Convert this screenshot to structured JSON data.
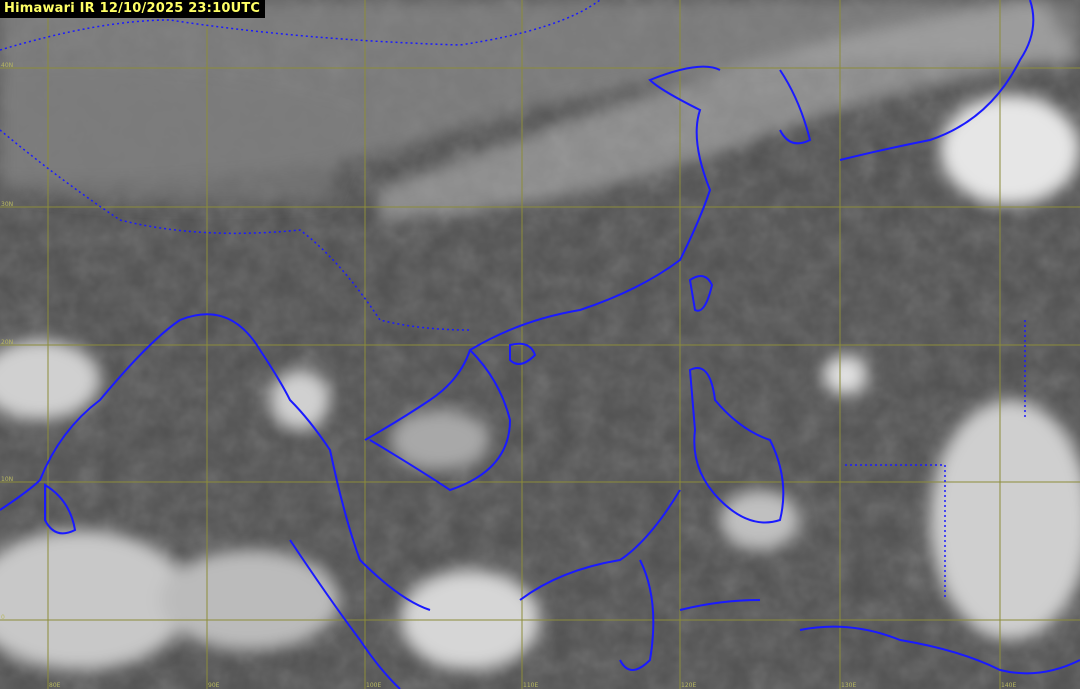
{
  "title": "Himawari IR 12/10/2025 23:10UTC",
  "colors": {
    "grid": "#8c8c3a",
    "coastline": "#1a1aff",
    "title_text": "#ffff66",
    "title_bg": "#000000"
  },
  "grid": {
    "latitudes": [
      "40N",
      "30N",
      "20N",
      "10N",
      "0"
    ],
    "longitudes": [
      "80E",
      "90E",
      "100E",
      "110E",
      "120E",
      "130E",
      "140E"
    ]
  }
}
